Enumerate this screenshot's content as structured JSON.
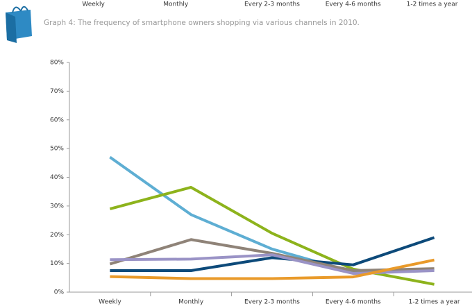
{
  "chart_data": {
    "type": "line",
    "title": "Graph 4: The frequency of smartphone owners shopping via various channels in 2010.",
    "categories": [
      "Weekly",
      "Monthly",
      "Every 2-3 months",
      "Every 4-6 months",
      "1-2 times a year"
    ],
    "series": [
      {
        "color": "#5eaed3",
        "values": [
          47,
          27,
          15,
          7,
          8
        ]
      },
      {
        "color": "#8db31c",
        "values": [
          29,
          36.5,
          20.5,
          8,
          2.7
        ]
      },
      {
        "color": "#0d4a7a",
        "values": [
          7.5,
          7.5,
          12,
          9.5,
          19
        ]
      },
      {
        "color": "#8f8378",
        "values": [
          9.8,
          18.3,
          13.5,
          7.5,
          8.2
        ]
      },
      {
        "color": "#9a93c6",
        "values": [
          11.3,
          11.5,
          13,
          6.5,
          7.5
        ]
      },
      {
        "color": "#e99a2a",
        "values": [
          5.4,
          4.7,
          4.7,
          5.3,
          11.2
        ]
      }
    ],
    "ylim": [
      0,
      80
    ],
    "yticks": [
      {
        "value": 0,
        "label": "0%"
      },
      {
        "value": 10,
        "label": "10%"
      },
      {
        "value": 20,
        "label": "20%"
      },
      {
        "value": 30,
        "label": "30%"
      },
      {
        "value": 40,
        "label": "40%"
      },
      {
        "value": 50,
        "label": "50%"
      },
      {
        "value": 60,
        "label": "60%"
      },
      {
        "value": 70,
        "label": "70%"
      },
      {
        "value": 80,
        "label": "80%"
      }
    ],
    "grid": false
  }
}
